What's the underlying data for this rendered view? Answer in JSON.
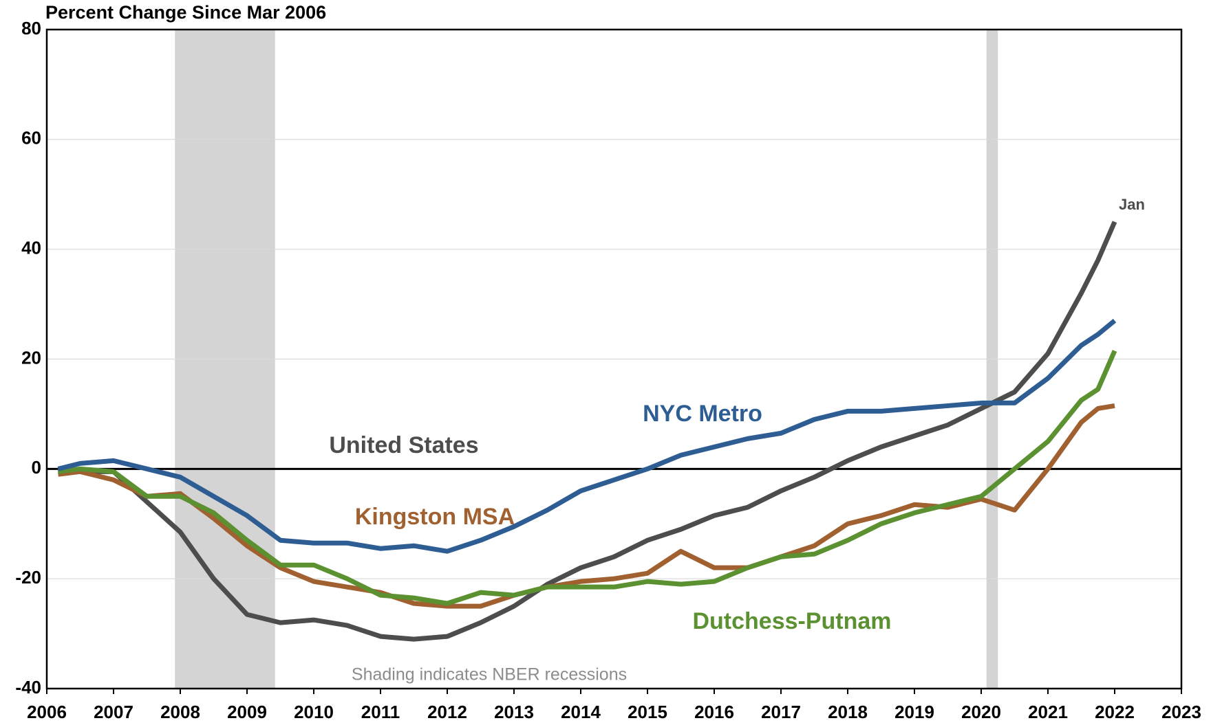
{
  "chart_data": {
    "type": "line",
    "title": "Percent Change Since Mar 2006",
    "note": "Shading indicates NBER recessions",
    "end_label": "Jan",
    "x": [
      2006.17,
      2006.5,
      2007.0,
      2007.5,
      2008.0,
      2008.5,
      2009.0,
      2009.5,
      2010.0,
      2010.5,
      2011.0,
      2011.5,
      2012.0,
      2012.5,
      2013.0,
      2013.5,
      2014.0,
      2014.5,
      2015.0,
      2015.5,
      2016.0,
      2016.5,
      2017.0,
      2017.5,
      2018.0,
      2018.5,
      2019.0,
      2019.5,
      2020.0,
      2020.5,
      2021.0,
      2021.5,
      2021.75,
      2022.0
    ],
    "series": [
      {
        "name": "United States",
        "color": "#4d4d4d",
        "values": [
          0,
          -0.5,
          -0.5,
          -6,
          -11.5,
          -20,
          -26.5,
          -28,
          -27.5,
          -28.5,
          -30.5,
          -31,
          -30.5,
          -28,
          -25,
          -21,
          -18,
          -16,
          -13,
          -11,
          -8.5,
          -7,
          -4,
          -1.5,
          1.5,
          4,
          6,
          8,
          11,
          14,
          21,
          32,
          38,
          45
        ]
      },
      {
        "name": "NYC Metro",
        "color": "#2e5d94",
        "values": [
          0,
          1,
          1.5,
          0,
          -1.5,
          -5,
          -8.5,
          -13,
          -13.5,
          -13.5,
          -14.5,
          -14,
          -15,
          -13,
          -10.5,
          -7.5,
          -4,
          -2,
          0,
          2.5,
          4,
          5.5,
          6.5,
          9,
          10.5,
          10.5,
          11,
          11.5,
          12,
          12,
          16.5,
          22.5,
          24.5,
          27
        ]
      },
      {
        "name": "Kingston MSA",
        "color": "#a0602f",
        "values": [
          -1,
          -0.5,
          -2,
          -5,
          -4.5,
          -9,
          -14,
          -18,
          -20.5,
          -21.5,
          -22.5,
          -24.5,
          -25,
          -25,
          -23,
          -21.5,
          -20.5,
          -20,
          -19,
          -15,
          -18,
          -18,
          -16,
          -14,
          -10,
          -8.5,
          -6.5,
          -7,
          -5.5,
          -7.5,
          0,
          8.5,
          11,
          11.5
        ]
      },
      {
        "name": "Dutchess-Putnam",
        "color": "#5b9130",
        "values": [
          -0.5,
          0,
          -0.5,
          -5,
          -5,
          -8,
          -13,
          -17.5,
          -17.5,
          -20,
          -23,
          -23.5,
          -24.5,
          -22.5,
          -23,
          -21.5,
          -21.5,
          -21.5,
          -20.5,
          -21,
          -20.5,
          -18,
          -16,
          -15.5,
          -13,
          -10,
          -8,
          -6.5,
          -5,
          0,
          5,
          12.5,
          14.5,
          21.5
        ]
      }
    ],
    "recessions": [
      [
        2007.92,
        2009.42
      ],
      [
        2020.08,
        2020.25
      ]
    ],
    "xlim": [
      2006,
      2023
    ],
    "xticks": [
      2006,
      2007,
      2008,
      2009,
      2010,
      2011,
      2012,
      2013,
      2014,
      2015,
      2016,
      2017,
      2018,
      2019,
      2020,
      2021,
      2022,
      2023
    ],
    "ylim": [
      -40,
      80
    ],
    "yticks": [
      -40,
      -20,
      0,
      20,
      40,
      60,
      80
    ],
    "grid": true
  }
}
